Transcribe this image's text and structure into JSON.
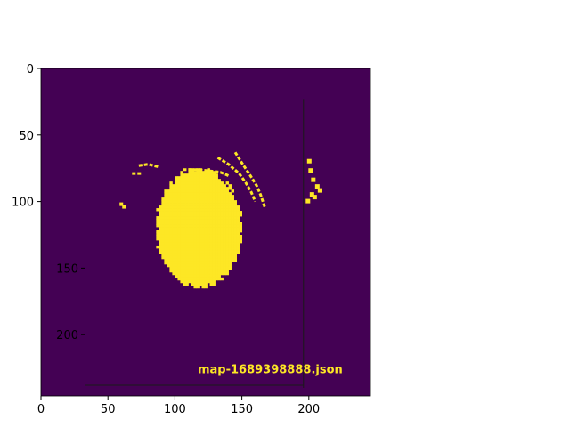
{
  "chart_data": {
    "type": "heatmap",
    "colormap": {
      "low": "#440154",
      "high": "#fde725"
    },
    "xlim": [
      0,
      246
    ],
    "ylim": [
      0,
      246
    ],
    "origin": "top-left",
    "x_ticks": [
      0,
      50,
      100,
      150,
      200
    ],
    "y_ticks": [
      0,
      50,
      100
    ],
    "y_ticks_inner": [
      150,
      200
    ],
    "grid": false,
    "annotation": {
      "text": "map-1689398888.json",
      "color": "#fde725"
    },
    "blob": {
      "cx": 117,
      "cy": 119,
      "rx": 33,
      "ry": 46
    },
    "arcs": [
      {
        "x": [
          145,
          150,
          156,
          161,
          164,
          167
        ],
        "y": [
          63,
          71,
          80,
          88,
          95,
          104
        ]
      },
      {
        "x": [
          132,
          140,
          148,
          153,
          157,
          160
        ],
        "y": [
          67,
          72,
          79,
          86,
          93,
          100
        ]
      },
      {
        "x": [
          106,
          117,
          126,
          134,
          141
        ],
        "y": [
          76,
          76,
          77,
          78,
          81
        ]
      },
      {
        "x": [
          73,
          80,
          88
        ],
        "y": [
          73,
          72,
          74
        ]
      },
      {
        "x": [
          68,
          75
        ],
        "y": [
          79,
          79
        ]
      }
    ],
    "right_marks": [
      {
        "x": 200,
        "y": 70
      },
      {
        "x": 201,
        "y": 77
      },
      {
        "x": 203,
        "y": 84
      },
      {
        "x": 206,
        "y": 89
      },
      {
        "x": 208,
        "y": 92
      },
      {
        "x": 202,
        "y": 95
      },
      {
        "x": 199,
        "y": 100
      },
      {
        "x": 204,
        "y": 97
      }
    ],
    "small_marks": [
      {
        "x": 60,
        "y": 102
      },
      {
        "x": 62,
        "y": 104
      }
    ],
    "lines": [
      {
        "x": [
          196,
          196
        ],
        "y": [
          23,
          240
        ]
      },
      {
        "x": [
          33,
          196
        ],
        "y": [
          238,
          238
        ]
      }
    ]
  }
}
